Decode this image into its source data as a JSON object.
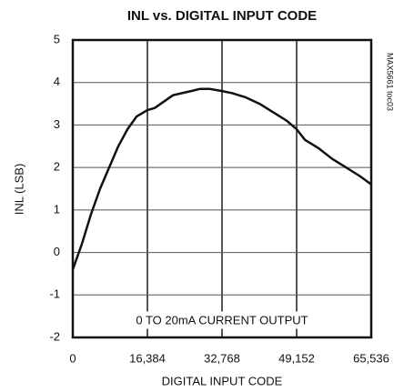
{
  "chart_data": {
    "type": "line",
    "title": "INL vs. DIGITAL INPUT CODE",
    "x_label": "DIGITAL INPUT CODE",
    "y_label": "INL (LSB)",
    "annotation": "0 TO 20mA CURRENT OUTPUT",
    "figure_id": "MAX5661 toc03",
    "x": [
      0,
      2000,
      4000,
      6000,
      8000,
      10000,
      12000,
      14000,
      16384,
      18000,
      20000,
      22000,
      24000,
      26000,
      28000,
      30000,
      32768,
      35000,
      38000,
      41000,
      44000,
      47000,
      49152,
      51000,
      54000,
      57000,
      60000,
      63000,
      65536
    ],
    "series": [
      {
        "name": "INL",
        "color": "#111111",
        "values": [
          -0.4,
          0.2,
          0.9,
          1.5,
          2.0,
          2.5,
          2.9,
          3.2,
          3.35,
          3.4,
          3.55,
          3.7,
          3.75,
          3.8,
          3.85,
          3.85,
          3.8,
          3.75,
          3.65,
          3.5,
          3.3,
          3.1,
          2.9,
          2.65,
          2.45,
          2.2,
          2.0,
          1.8,
          1.6
        ]
      }
    ],
    "xlim": [
      0,
      65536
    ],
    "xticks": [
      0,
      {
        "value": 16384,
        "label": "16,384"
      },
      {
        "value": 32768,
        "label": "32,768"
      },
      {
        "value": 49152,
        "label": "49,152"
      },
      {
        "value": 65536,
        "label": "65,536"
      }
    ],
    "ylim": [
      -2,
      5
    ],
    "yticks": [
      -2,
      -1,
      0,
      1,
      2,
      3,
      4,
      5
    ],
    "grid": true
  }
}
